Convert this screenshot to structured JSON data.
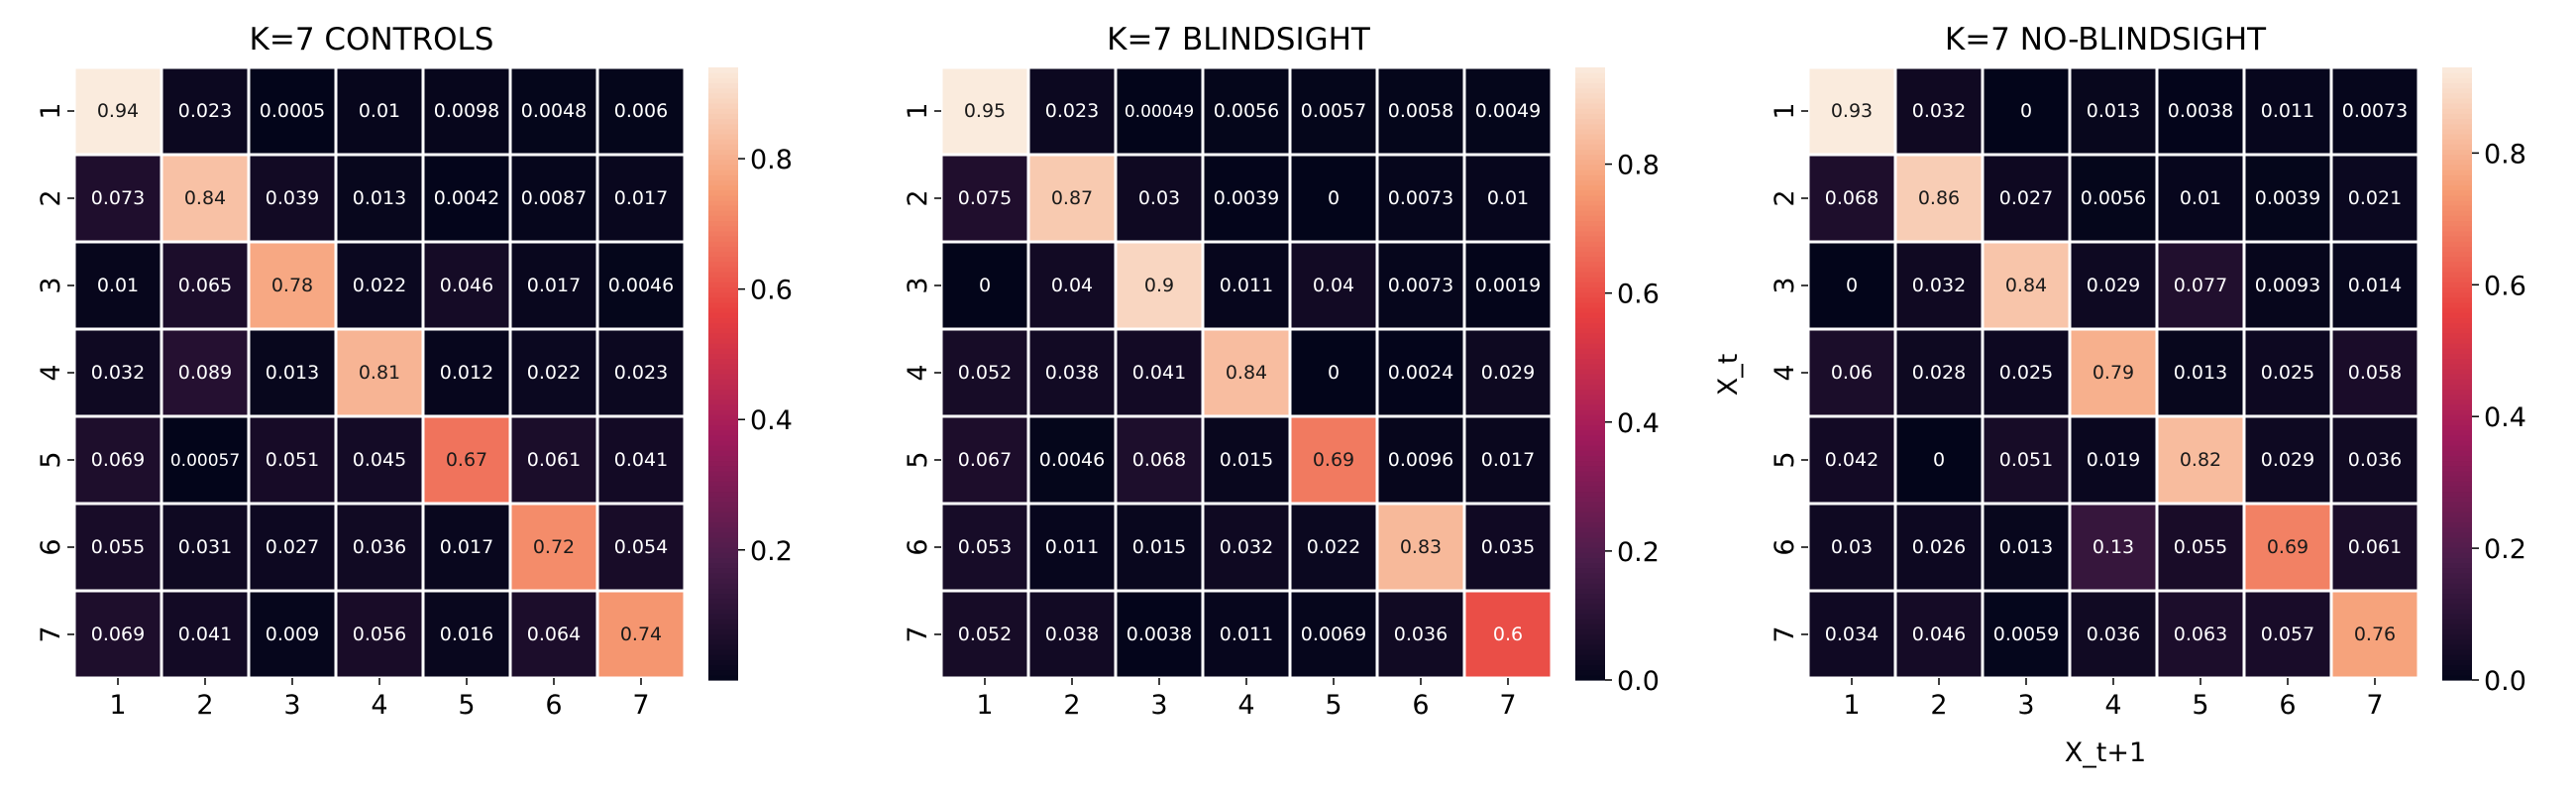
{
  "colormap": [
    "#03051a",
    "#4c1d4b",
    "#a11a5b",
    "#e83f3f",
    "#f69c73",
    "#faebdd"
  ],
  "chart_data": [
    {
      "type": "heatmap",
      "title": "K=7 CONTROLS",
      "xlabel": "",
      "ylabel": "",
      "x_categories": [
        "1",
        "2",
        "3",
        "4",
        "5",
        "6",
        "7"
      ],
      "y_categories": [
        "1",
        "2",
        "3",
        "4",
        "5",
        "6",
        "7"
      ],
      "values": [
        [
          0.94,
          0.023,
          0.0005,
          0.01,
          0.0098,
          0.0048,
          0.006
        ],
        [
          0.073,
          0.84,
          0.039,
          0.013,
          0.0042,
          0.0087,
          0.017
        ],
        [
          0.01,
          0.065,
          0.78,
          0.022,
          0.046,
          0.017,
          0.0046
        ],
        [
          0.032,
          0.089,
          0.013,
          0.81,
          0.012,
          0.022,
          0.023
        ],
        [
          0.069,
          0.00057,
          0.051,
          0.045,
          0.67,
          0.061,
          0.041
        ],
        [
          0.055,
          0.031,
          0.027,
          0.036,
          0.017,
          0.72,
          0.054
        ],
        [
          0.069,
          0.041,
          0.009,
          0.056,
          0.016,
          0.064,
          0.74
        ]
      ],
      "labels": [
        [
          "0.94",
          "0.023",
          "0.0005",
          "0.01",
          "0.0098",
          "0.0048",
          "0.006"
        ],
        [
          "0.073",
          "0.84",
          "0.039",
          "0.013",
          "0.0042",
          "0.0087",
          "0.017"
        ],
        [
          "0.01",
          "0.065",
          "0.78",
          "0.022",
          "0.046",
          "0.017",
          "0.0046"
        ],
        [
          "0.032",
          "0.089",
          "0.013",
          "0.81",
          "0.012",
          "0.022",
          "0.023"
        ],
        [
          "0.069",
          "0.00057",
          "0.051",
          "0.045",
          "0.67",
          "0.061",
          "0.041"
        ],
        [
          "0.055",
          "0.031",
          "0.027",
          "0.036",
          "0.017",
          "0.72",
          "0.054"
        ],
        [
          "0.069",
          "0.041",
          "0.009",
          "0.056",
          "0.016",
          "0.064",
          "0.74"
        ]
      ],
      "vmin": 0.0005,
      "vmax": 0.94,
      "colorbar_ticks": [
        0.2,
        0.4,
        0.6,
        0.8
      ],
      "colorbar_tick_labels": [
        "0.2",
        "0.4",
        "0.6",
        "0.8"
      ]
    },
    {
      "type": "heatmap",
      "title": "K=7 BLINDSIGHT",
      "xlabel": "",
      "ylabel": "",
      "x_categories": [
        "1",
        "2",
        "3",
        "4",
        "5",
        "6",
        "7"
      ],
      "y_categories": [
        "1",
        "2",
        "3",
        "4",
        "5",
        "6",
        "7"
      ],
      "values": [
        [
          0.95,
          0.023,
          0.00049,
          0.0056,
          0.0057,
          0.0058,
          0.0049
        ],
        [
          0.075,
          0.87,
          0.03,
          0.0039,
          0,
          0.0073,
          0.01
        ],
        [
          0,
          0.04,
          0.9,
          0.011,
          0.04,
          0.0073,
          0.0019
        ],
        [
          0.052,
          0.038,
          0.041,
          0.84,
          0,
          0.0024,
          0.029
        ],
        [
          0.067,
          0.0046,
          0.068,
          0.015,
          0.69,
          0.0096,
          0.017
        ],
        [
          0.053,
          0.011,
          0.015,
          0.032,
          0.022,
          0.83,
          0.035
        ],
        [
          0.052,
          0.038,
          0.0038,
          0.011,
          0.0069,
          0.036,
          0.6
        ]
      ],
      "labels": [
        [
          "0.95",
          "0.023",
          "0.00049",
          "0.0056",
          "0.0057",
          "0.0058",
          "0.0049"
        ],
        [
          "0.075",
          "0.87",
          "0.03",
          "0.0039",
          "0",
          "0.0073",
          "0.01"
        ],
        [
          "0",
          "0.04",
          "0.9",
          "0.011",
          "0.04",
          "0.0073",
          "0.0019"
        ],
        [
          "0.052",
          "0.038",
          "0.041",
          "0.84",
          "0",
          "0.0024",
          "0.029"
        ],
        [
          "0.067",
          "0.0046",
          "0.068",
          "0.015",
          "0.69",
          "0.0096",
          "0.017"
        ],
        [
          "0.053",
          "0.011",
          "0.015",
          "0.032",
          "0.022",
          "0.83",
          "0.035"
        ],
        [
          "0.052",
          "0.038",
          "0.0038",
          "0.011",
          "0.0069",
          "0.036",
          "0.6"
        ]
      ],
      "vmin": 0,
      "vmax": 0.95,
      "colorbar_ticks": [
        0.0,
        0.2,
        0.4,
        0.6,
        0.8
      ],
      "colorbar_tick_labels": [
        "0.0",
        "0.2",
        "0.4",
        "0.6",
        "0.8"
      ]
    },
    {
      "type": "heatmap",
      "title": "K=7 NO-BLINDSIGHT",
      "xlabel": "X_t+1",
      "ylabel": "X_t",
      "x_categories": [
        "1",
        "2",
        "3",
        "4",
        "5",
        "6",
        "7"
      ],
      "y_categories": [
        "1",
        "2",
        "3",
        "4",
        "5",
        "6",
        "7"
      ],
      "values": [
        [
          0.93,
          0.032,
          0,
          0.013,
          0.0038,
          0.011,
          0.0073
        ],
        [
          0.068,
          0.86,
          0.027,
          0.0056,
          0.01,
          0.0039,
          0.021
        ],
        [
          0,
          0.032,
          0.84,
          0.029,
          0.077,
          0.0093,
          0.014
        ],
        [
          0.06,
          0.028,
          0.025,
          0.79,
          0.013,
          0.025,
          0.058
        ],
        [
          0.042,
          0,
          0.051,
          0.019,
          0.82,
          0.029,
          0.036
        ],
        [
          0.03,
          0.026,
          0.013,
          0.13,
          0.055,
          0.69,
          0.061
        ],
        [
          0.034,
          0.046,
          0.0059,
          0.036,
          0.063,
          0.057,
          0.76
        ]
      ],
      "labels": [
        [
          "0.93",
          "0.032",
          "0",
          "0.013",
          "0.0038",
          "0.011",
          "0.0073"
        ],
        [
          "0.068",
          "0.86",
          "0.027",
          "0.0056",
          "0.01",
          "0.0039",
          "0.021"
        ],
        [
          "0",
          "0.032",
          "0.84",
          "0.029",
          "0.077",
          "0.0093",
          "0.014"
        ],
        [
          "0.06",
          "0.028",
          "0.025",
          "0.79",
          "0.013",
          "0.025",
          "0.058"
        ],
        [
          "0.042",
          "0",
          "0.051",
          "0.019",
          "0.82",
          "0.029",
          "0.036"
        ],
        [
          "0.03",
          "0.026",
          "0.013",
          "0.13",
          "0.055",
          "0.69",
          "0.061"
        ],
        [
          "0.034",
          "0.046",
          "0.0059",
          "0.036",
          "0.063",
          "0.057",
          "0.76"
        ]
      ],
      "vmin": 0,
      "vmax": 0.93,
      "colorbar_ticks": [
        0.0,
        0.2,
        0.4,
        0.6,
        0.8
      ],
      "colorbar_tick_labels": [
        "0.0",
        "0.2",
        "0.4",
        "0.6",
        "0.8"
      ]
    }
  ]
}
